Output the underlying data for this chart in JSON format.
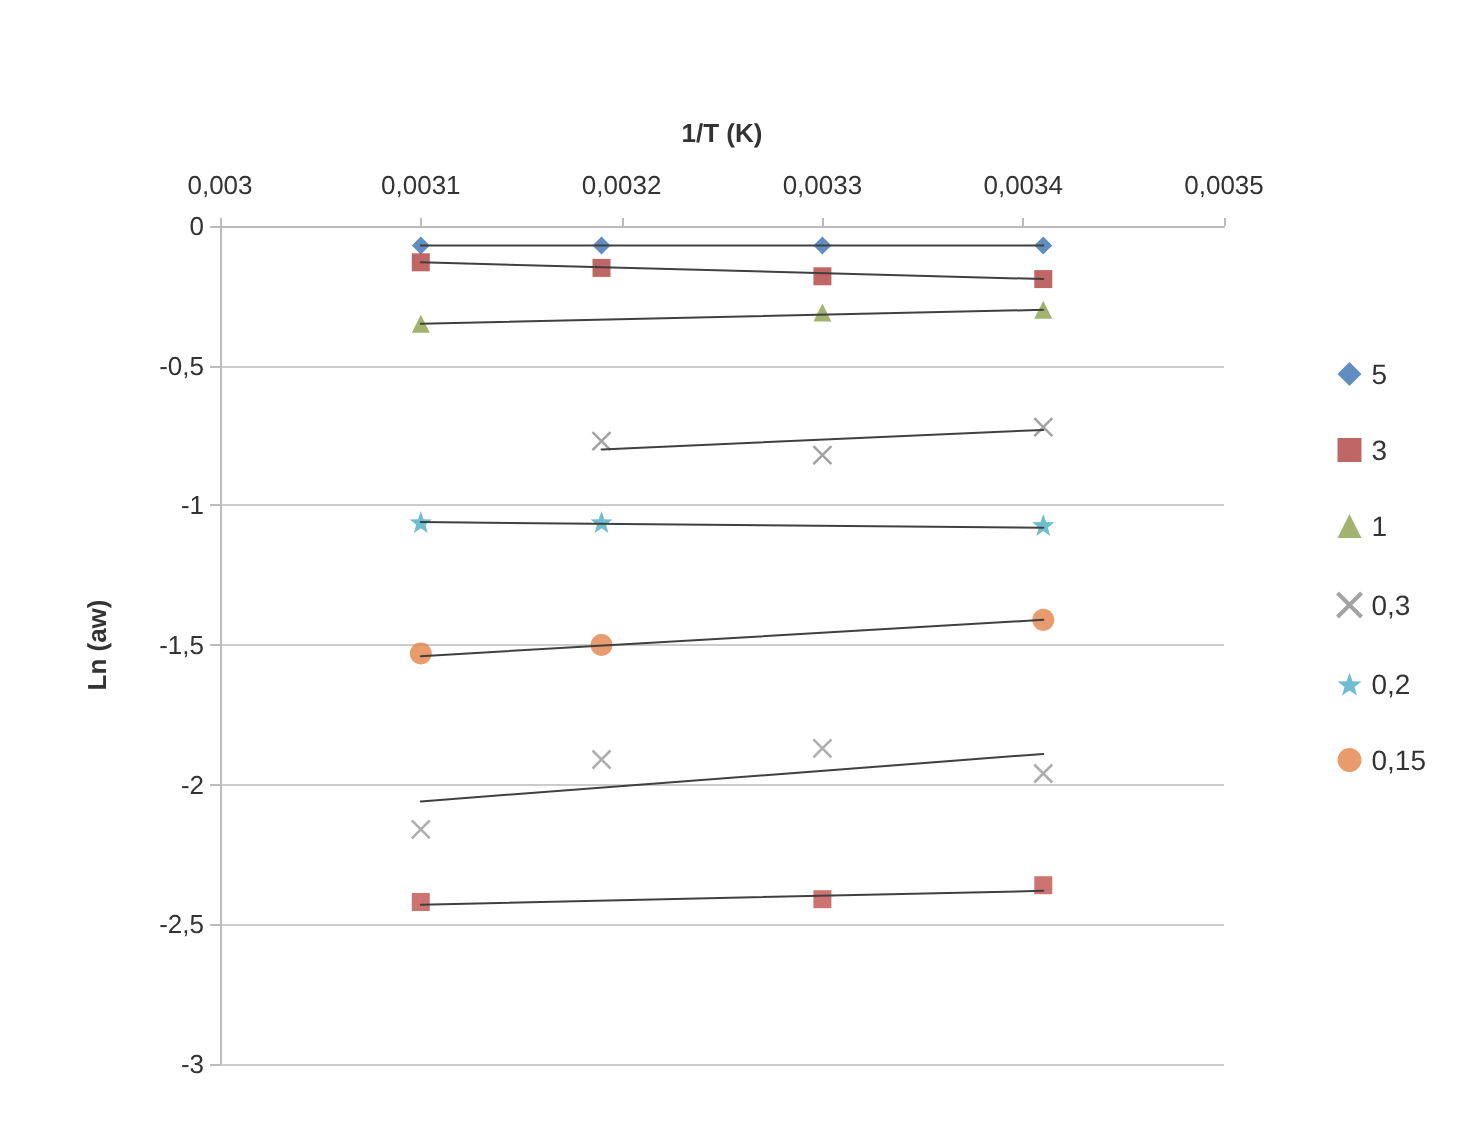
{
  "chart_data": {
    "type": "scatter",
    "xlabel": "1/T (K)",
    "ylabel": "Ln (aw)",
    "xlim": [
      0.003,
      0.0035
    ],
    "xticks": [
      {
        "value": 0.003,
        "label": "0,003"
      },
      {
        "value": 0.0031,
        "label": "0,0031"
      },
      {
        "value": 0.0032,
        "label": "0,0032"
      },
      {
        "value": 0.0033,
        "label": "0,0033"
      },
      {
        "value": 0.0034,
        "label": "0,0034"
      },
      {
        "value": 0.0035,
        "label": "0,0035"
      }
    ],
    "ylim": [
      -3,
      0
    ],
    "yticks": [
      0,
      {
        "value": -0.5,
        "label": "-0,5"
      },
      -1,
      {
        "value": -1.5,
        "label": "-1,5"
      },
      -2,
      {
        "value": -2.5,
        "label": "-2,5"
      },
      -3
    ],
    "grid": "y",
    "legend": "right",
    "series": [
      {
        "name": "5",
        "color": "#3a70b0",
        "marker": "diamond",
        "x": [
          0.0031,
          0.00319,
          0.0033,
          0.00341
        ],
        "values": [
          -0.07,
          -0.07,
          -0.07,
          -0.07
        ]
      },
      {
        "name": "3",
        "color": "#b0413e",
        "marker": "square",
        "x": [
          0.0031,
          0.00319,
          0.0033,
          0.00341
        ],
        "values": [
          -0.13,
          -0.15,
          -0.18,
          -0.19
        ]
      },
      {
        "name": "1",
        "color": "#8aa04a",
        "marker": "triangle",
        "x": [
          0.0031,
          0.0033,
          0.00341
        ],
        "values": [
          -0.35,
          -0.31,
          -0.3
        ]
      },
      {
        "name": "0,3",
        "color": "#8c8c8c",
        "marker": "cross",
        "x": [
          0.00319,
          0.0033,
          0.00341
        ],
        "values": [
          -0.77,
          -0.82,
          -0.72
        ]
      },
      {
        "name": "0,2",
        "color": "#4bacc6",
        "marker": "star",
        "x": [
          0.0031,
          0.00319,
          0.00341
        ],
        "values": [
          -1.06,
          -1.06,
          -1.07
        ]
      },
      {
        "name": "0,15",
        "color": "#e2834a",
        "marker": "circle",
        "x": [
          0.0031,
          0.00319,
          0.00341
        ],
        "values": [
          -1.53,
          -1.5,
          -1.41
        ]
      },
      {
        "color": "#9a9a9a",
        "marker": "cross",
        "x": [
          0.0031,
          0.00319,
          0.0033,
          0.00341
        ],
        "values": [
          -2.16,
          -1.91,
          -1.87,
          -1.96
        ]
      },
      {
        "color": "#c0504d",
        "marker": "square",
        "x": [
          0.0031,
          0.0033,
          0.00341
        ],
        "values": [
          -2.42,
          -2.41,
          -2.36
        ]
      },
      {
        "type": "line",
        "color": "#404040",
        "marker": "none",
        "x": [
          0.0031,
          0.00341
        ],
        "values": [
          -0.07,
          -0.07
        ]
      },
      {
        "type": "line",
        "color": "#404040",
        "marker": "none",
        "x": [
          0.0031,
          0.00341
        ],
        "values": [
          -0.13,
          -0.19
        ]
      },
      {
        "type": "line",
        "color": "#404040",
        "marker": "none",
        "x": [
          0.0031,
          0.00341
        ],
        "values": [
          -0.35,
          -0.3
        ]
      },
      {
        "type": "line",
        "color": "#404040",
        "marker": "none",
        "x": [
          0.00319,
          0.00341
        ],
        "values": [
          -0.8,
          -0.73
        ]
      },
      {
        "type": "line",
        "color": "#404040",
        "marker": "none",
        "x": [
          0.0031,
          0.00341
        ],
        "values": [
          -1.06,
          -1.08
        ]
      },
      {
        "type": "line",
        "color": "#404040",
        "marker": "none",
        "x": [
          0.0031,
          0.00341
        ],
        "values": [
          -1.54,
          -1.41
        ]
      },
      {
        "type": "line",
        "color": "#404040",
        "marker": "none",
        "x": [
          0.0031,
          0.00341
        ],
        "values": [
          -2.06,
          -1.89
        ]
      },
      {
        "type": "line",
        "color": "#404040",
        "marker": "none",
        "x": [
          0.0031,
          0.00341
        ],
        "values": [
          -2.43,
          -2.38
        ]
      }
    ]
  }
}
